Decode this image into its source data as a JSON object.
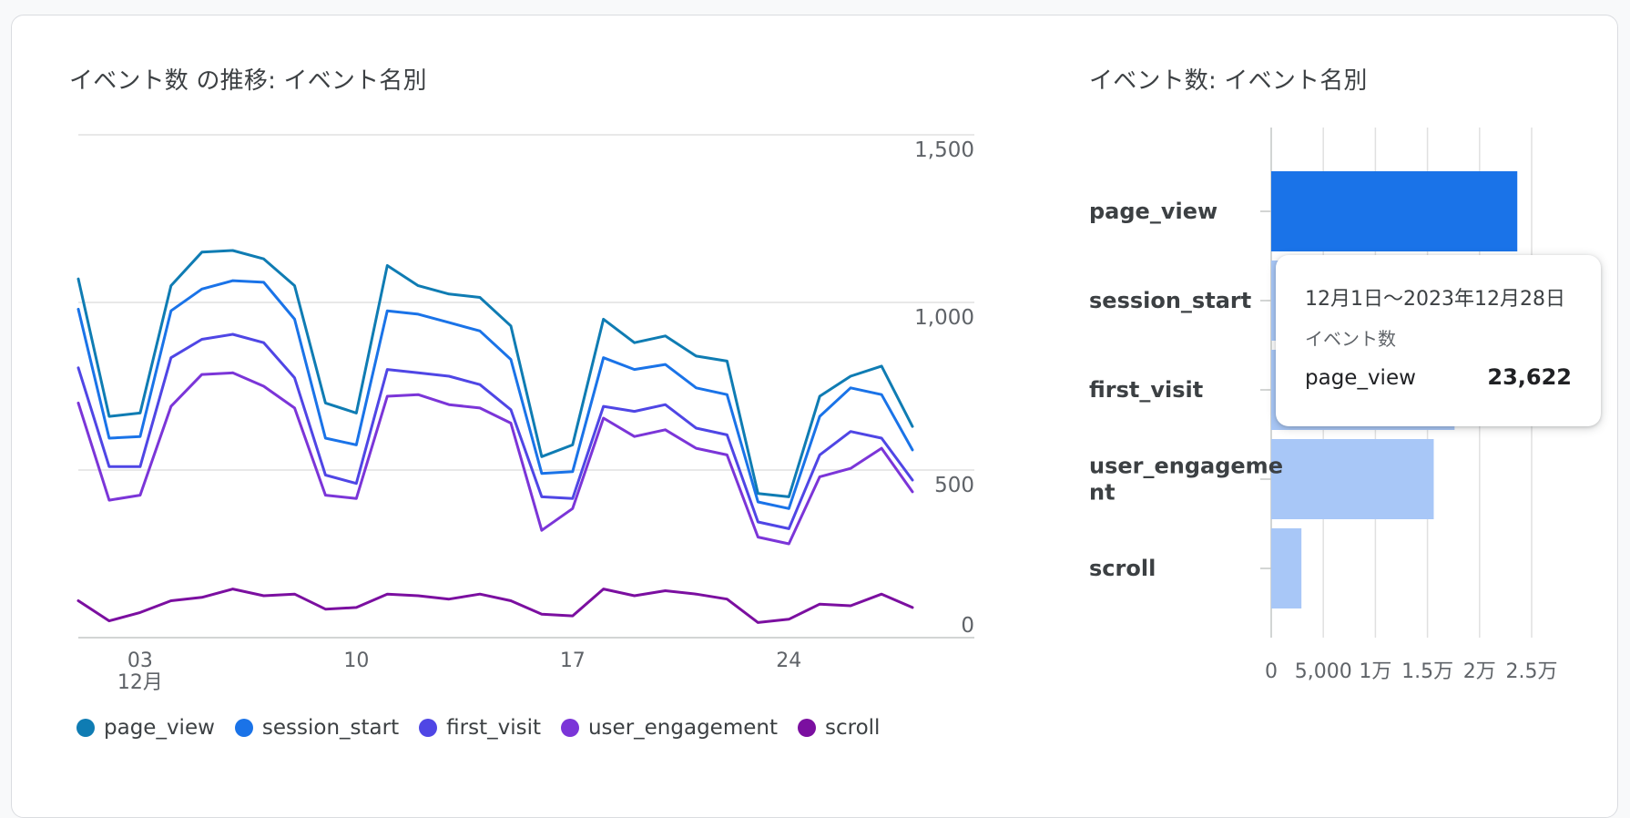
{
  "line_chart_title": "イベント数 の推移: イベント名別",
  "bar_chart_title": "イベント数: イベント名別",
  "tooltip": {
    "range": "12月1日〜2023年12月28日",
    "metric": "イベント数",
    "name": "page_view",
    "value": "23,622"
  },
  "chart_data": [
    {
      "type": "line",
      "x_ticks": [
        {
          "label": "03",
          "sublabel": "12月",
          "day": 3
        },
        {
          "label": "10",
          "day": 10
        },
        {
          "label": "17",
          "day": 17
        },
        {
          "label": "24",
          "day": 24
        }
      ],
      "x": [
        1,
        2,
        3,
        4,
        5,
        6,
        7,
        8,
        9,
        10,
        11,
        12,
        13,
        14,
        15,
        16,
        17,
        18,
        19,
        20,
        21,
        22,
        23,
        24,
        25,
        26,
        27,
        28
      ],
      "y_ticks": [
        "0",
        "500",
        "1,000",
        "1,500"
      ],
      "ylim": [
        0,
        1500
      ],
      "y_axis_position": "right",
      "grid": true,
      "legend_position": "bottom",
      "series": [
        {
          "name": "page_view",
          "color": "#0f7cb3",
          "values": [
            1070,
            660,
            670,
            1050,
            1150,
            1155,
            1130,
            1050,
            700,
            670,
            1110,
            1050,
            1025,
            1015,
            930,
            540,
            575,
            950,
            880,
            900,
            840,
            825,
            430,
            420,
            720,
            780,
            810,
            630
          ]
        },
        {
          "name": "session_start",
          "color": "#1a73e8",
          "values": [
            980,
            595,
            600,
            975,
            1040,
            1065,
            1060,
            950,
            595,
            575,
            975,
            965,
            940,
            915,
            830,
            490,
            495,
            835,
            800,
            815,
            745,
            725,
            405,
            385,
            660,
            745,
            725,
            560
          ]
        },
        {
          "name": "first_visit",
          "color": "#4f46e5",
          "values": [
            805,
            510,
            510,
            835,
            890,
            905,
            880,
            775,
            485,
            460,
            800,
            790,
            780,
            755,
            680,
            420,
            415,
            690,
            675,
            695,
            625,
            605,
            345,
            325,
            545,
            615,
            595,
            470
          ]
        },
        {
          "name": "user_engagement",
          "color": "#7b35d8",
          "values": [
            700,
            410,
            425,
            690,
            785,
            790,
            750,
            685,
            425,
            415,
            720,
            725,
            695,
            685,
            640,
            320,
            385,
            655,
            600,
            620,
            565,
            545,
            300,
            280,
            480,
            505,
            565,
            435
          ]
        },
        {
          "name": "scroll",
          "color": "#7b0fa0",
          "values": [
            110,
            50,
            75,
            110,
            120,
            145,
            125,
            130,
            85,
            90,
            130,
            125,
            115,
            130,
            110,
            70,
            65,
            145,
            125,
            140,
            130,
            115,
            45,
            55,
            100,
            95,
            130,
            90
          ]
        }
      ]
    },
    {
      "type": "bar",
      "orientation": "horizontal",
      "categories": [
        "page_view",
        "session_start",
        "first_visit",
        "user_engagement",
        "scroll"
      ],
      "category_labels": [
        [
          "page_view"
        ],
        [
          "session_start"
        ],
        [
          "first_visit"
        ],
        [
          "user_engageme",
          "nt"
        ],
        [
          "scroll"
        ]
      ],
      "values": [
        23622,
        19000,
        17600,
        15600,
        2900
      ],
      "x_ticks": [
        "0",
        "5,000",
        "1万",
        "1.5万",
        "2万",
        "2.5万"
      ],
      "xlim": [
        0,
        25000
      ],
      "highlight": "page_view",
      "highlight_color": "#1a73e8",
      "bar_color": "#a8c7f7",
      "grid": true
    }
  ]
}
